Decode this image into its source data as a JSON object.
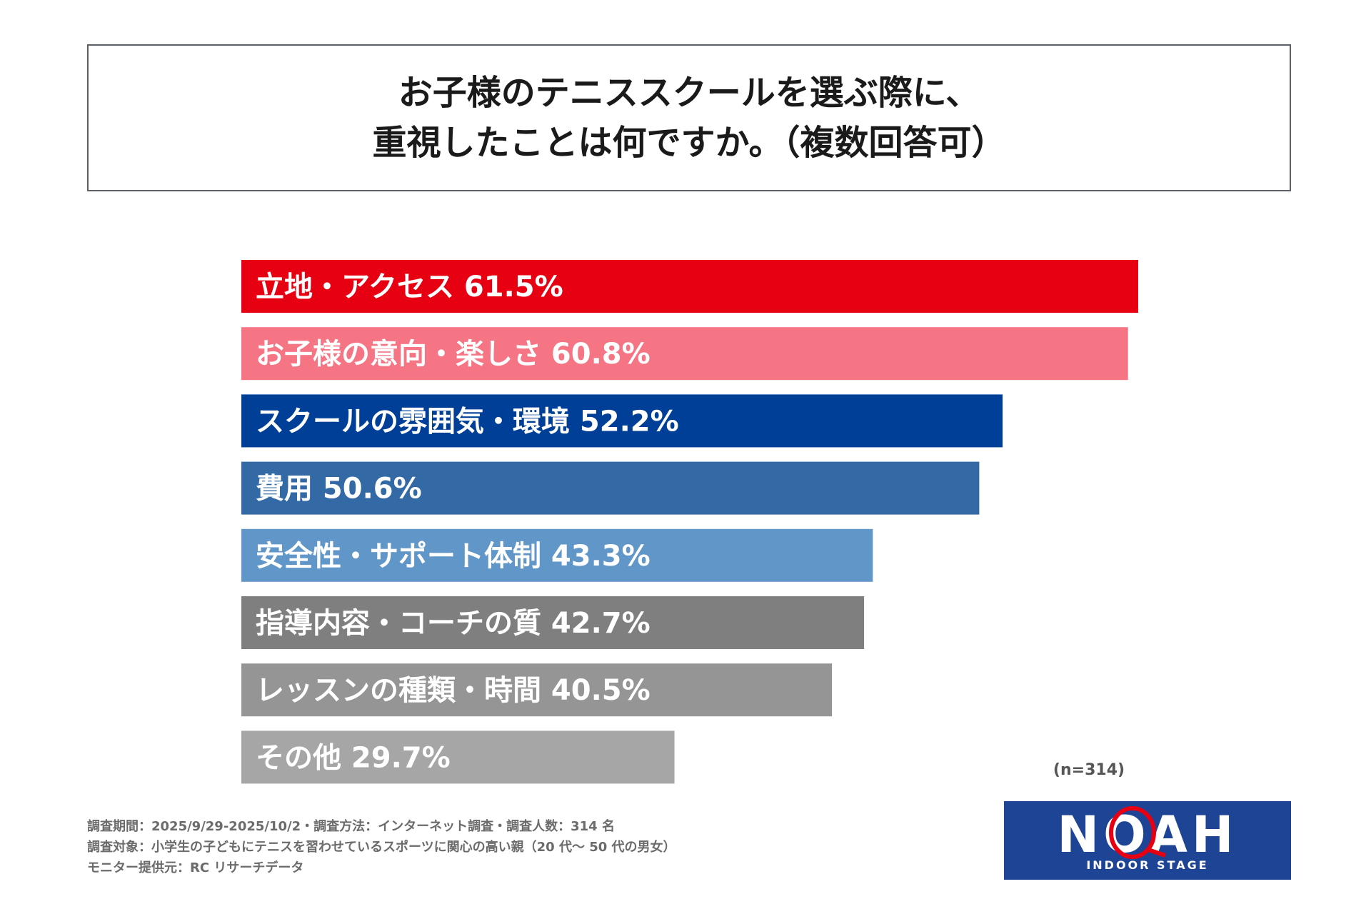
{
  "title": {
    "line1": "お子様のテニススクールを選ぶ際に、",
    "line2": "重視したことは何ですか。（複数回答可）"
  },
  "chart_data": {
    "type": "bar",
    "orientation": "horizontal",
    "categories": [
      "立地・アクセス",
      "お子様の意向・楽しさ",
      "スクールの雰囲気・環境",
      "費用",
      "安全性・サポート体制",
      "指導内容・コーチの質",
      "レッスンの種類・時間",
      "その他"
    ],
    "values": [
      61.5,
      60.8,
      52.2,
      50.6,
      43.3,
      42.7,
      40.5,
      29.7
    ],
    "labels": [
      "立地・アクセス  61.5%",
      "お子様の意向・楽しさ  60.8%",
      "スクールの雰囲気・環境  52.2%",
      "費用  50.6%",
      "安全性・サポート体制  43.3%",
      "指導内容・コーチの質  42.7%",
      "レッスンの種類・時間  40.5%",
      "その他  29.7%"
    ],
    "colors": [
      "#e60012",
      "#f67585",
      "#003f98",
      "#336aa6",
      "#6096c8",
      "#7f7f7f",
      "#959595",
      "#a6a6a6"
    ],
    "unit": "%",
    "xlim": [
      0,
      61.5
    ],
    "grid": false
  },
  "sample_size": "(n=314)",
  "footer": {
    "line1": "調査期間：2025/9/29-2025/10/2・調査方法：インターネット調査・調査人数：314 名",
    "line2": "調査対象：小学生の子どもにテニスを習わせているスポーツに関心の高い親（20 代～ 50 代の男女）",
    "line3": "モニター提供元：RC リサーチデータ"
  },
  "logo": {
    "text": "NOAH",
    "subtitle": "INDOOR STAGE",
    "bg_color": "#1e4496",
    "accent_color": "#e60012",
    "icon": "tennis-racket-icon"
  }
}
